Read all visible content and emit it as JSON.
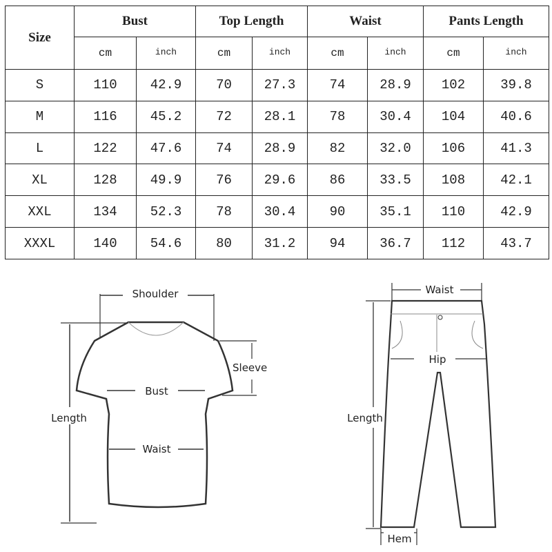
{
  "table": {
    "size_header": "Size",
    "groups": [
      "Bust",
      "Top Length",
      "Waist",
      "Pants Length"
    ],
    "units": [
      "cm",
      "inch"
    ],
    "rows": [
      {
        "size": "S",
        "values": [
          "110",
          "42.9",
          "70",
          "27.3",
          "74",
          "28.9",
          "102",
          "39.8"
        ]
      },
      {
        "size": "M",
        "values": [
          "116",
          "45.2",
          "72",
          "28.1",
          "78",
          "30.4",
          "104",
          "40.6"
        ]
      },
      {
        "size": "L",
        "values": [
          "122",
          "47.6",
          "74",
          "28.9",
          "82",
          "32.0",
          "106",
          "41.3"
        ]
      },
      {
        "size": "XL",
        "values": [
          "128",
          "49.9",
          "76",
          "29.6",
          "86",
          "33.5",
          "108",
          "42.1"
        ]
      },
      {
        "size": "XXL",
        "values": [
          "134",
          "52.3",
          "78",
          "30.4",
          "90",
          "35.1",
          "110",
          "42.9"
        ]
      },
      {
        "size": "XXXL",
        "values": [
          "140",
          "54.6",
          "80",
          "31.2",
          "94",
          "36.7",
          "112",
          "43.7"
        ]
      }
    ]
  },
  "shirt_diagram": {
    "shoulder": "Shoulder",
    "sleeve": "Sleeve",
    "bust": "Bust",
    "length": "Length",
    "waist": "Waist"
  },
  "pants_diagram": {
    "waist": "Waist",
    "hip": "Hip",
    "length": "Length",
    "hem": "Hem"
  }
}
